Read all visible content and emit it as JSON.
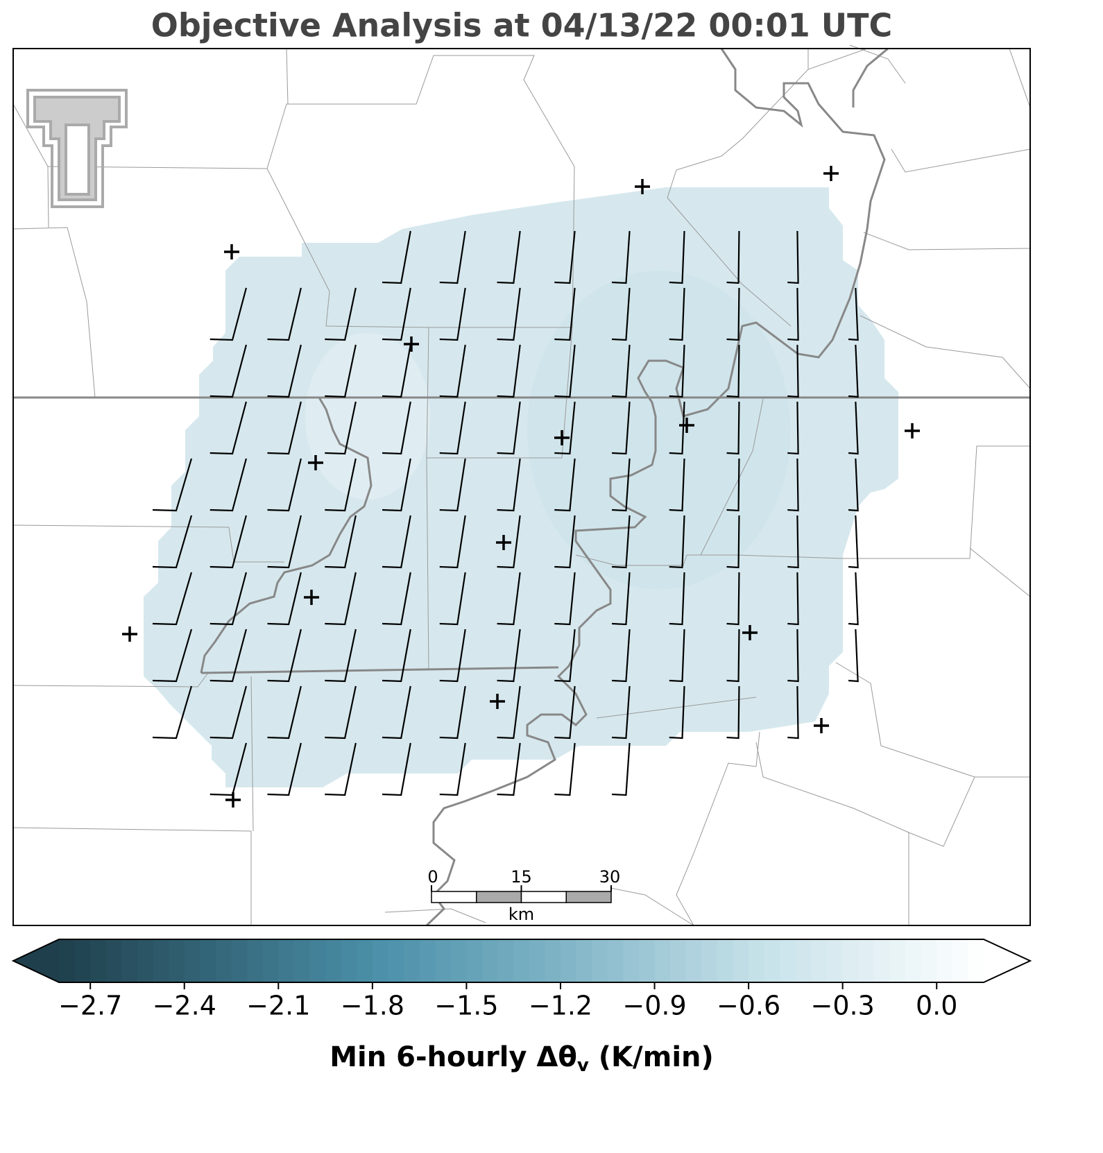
{
  "title": "Objective Analysis at 04/13/22 00:01 UTC",
  "colorbar": {
    "clim": [
      -2.8,
      0.15
    ],
    "ticks": [
      {
        "value": -2.7,
        "label": "−2.7"
      },
      {
        "value": -2.4,
        "label": "−2.4"
      },
      {
        "value": -2.1,
        "label": "−2.1"
      },
      {
        "value": -1.8,
        "label": "−1.8"
      },
      {
        "value": -1.5,
        "label": "−1.5"
      },
      {
        "value": -1.2,
        "label": "−1.2"
      },
      {
        "value": -0.9,
        "label": "−0.9"
      },
      {
        "value": -0.6,
        "label": "−0.6"
      },
      {
        "value": -0.3,
        "label": "−0.3"
      },
      {
        "value": 0,
        "label": "0.0"
      }
    ],
    "label_parts": [
      "Min 6-hourly Δθ",
      "v",
      " (K/min)"
    ]
  },
  "scale_bar": {
    "ticks": [
      0,
      15,
      30
    ],
    "unit": "km"
  }
}
